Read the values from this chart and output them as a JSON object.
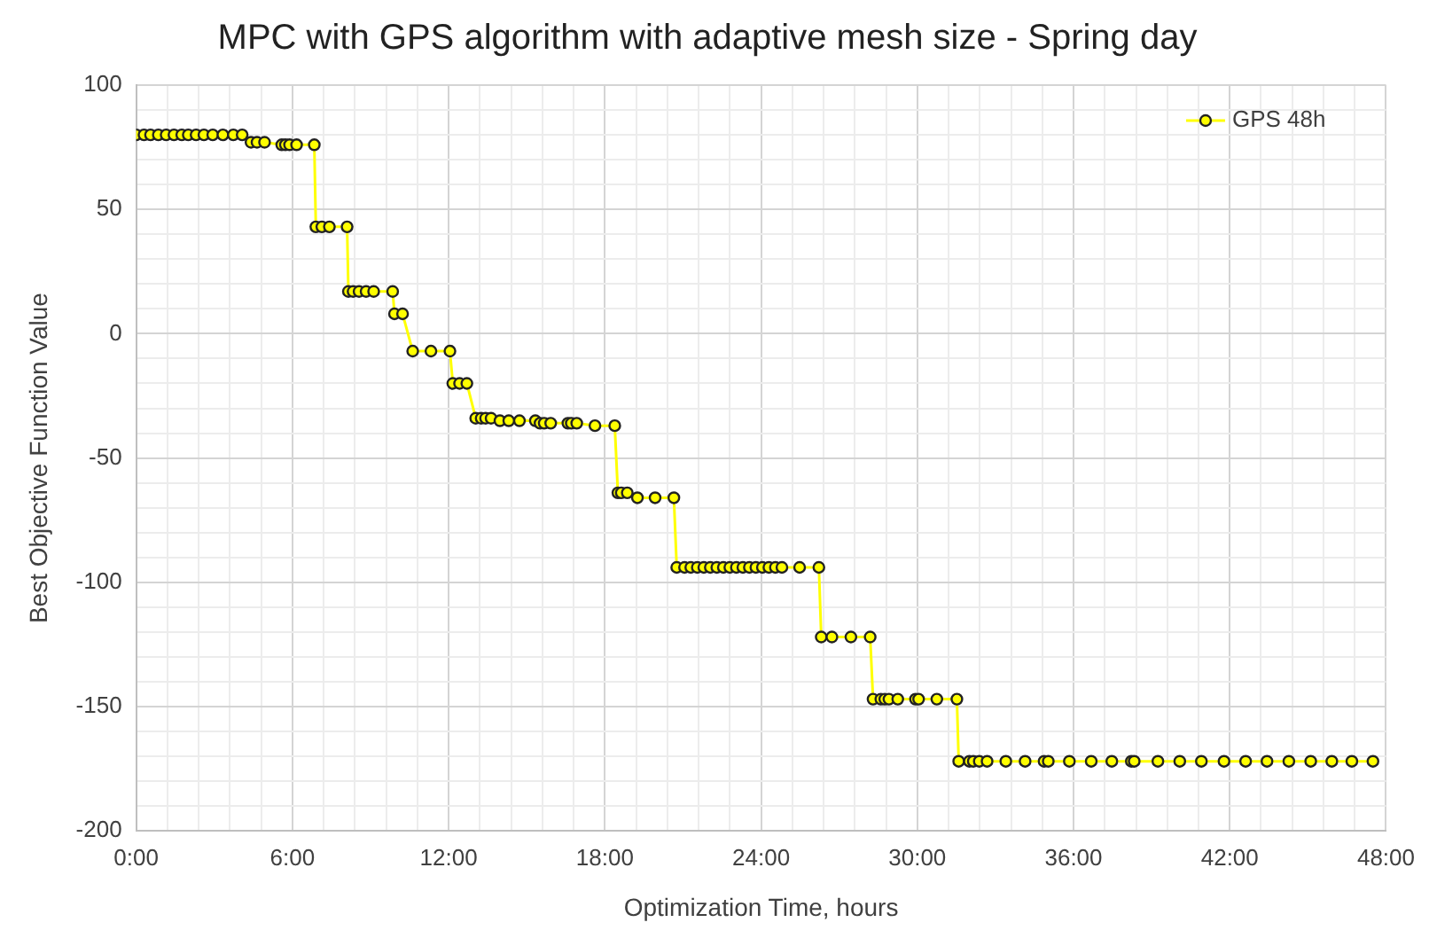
{
  "chart_data": {
    "type": "line",
    "title": "MPC with GPS algorithm with adaptive mesh size - Spring day",
    "xlabel": "Optimization Time, hours",
    "ylabel": "Best Objective Function Value",
    "xlim": [
      0,
      48
    ],
    "ylim": [
      -200,
      100
    ],
    "xticks": [
      {
        "value": 0,
        "label": "0:00"
      },
      {
        "value": 1.2,
        "label": null
      },
      {
        "value": 2.4,
        "label": null
      },
      {
        "value": 3.6,
        "label": null
      },
      {
        "value": 4.8,
        "label": null
      },
      {
        "value": 6,
        "label": "6:00"
      },
      {
        "value": 7.2,
        "label": null
      },
      {
        "value": 8.4,
        "label": null
      },
      {
        "value": 9.6,
        "label": null
      },
      {
        "value": 10.8,
        "label": null
      },
      {
        "value": 12,
        "label": "12:00"
      },
      {
        "value": 13.2,
        "label": null
      },
      {
        "value": 14.4,
        "label": null
      },
      {
        "value": 15.6,
        "label": null
      },
      {
        "value": 16.8,
        "label": null
      },
      {
        "value": 18,
        "label": "18:00"
      },
      {
        "value": 19.2,
        "label": null
      },
      {
        "value": 20.4,
        "label": null
      },
      {
        "value": 21.6,
        "label": null
      },
      {
        "value": 22.8,
        "label": null
      },
      {
        "value": 24,
        "label": "24:00"
      },
      {
        "value": 25.2,
        "label": null
      },
      {
        "value": 26.4,
        "label": null
      },
      {
        "value": 27.6,
        "label": null
      },
      {
        "value": 28.8,
        "label": null
      },
      {
        "value": 30,
        "label": "30:00"
      },
      {
        "value": 31.2,
        "label": null
      },
      {
        "value": 32.4,
        "label": null
      },
      {
        "value": 33.6,
        "label": null
      },
      {
        "value": 34.8,
        "label": null
      },
      {
        "value": 36,
        "label": "36:00"
      },
      {
        "value": 37.2,
        "label": null
      },
      {
        "value": 38.4,
        "label": null
      },
      {
        "value": 39.6,
        "label": null
      },
      {
        "value": 40.8,
        "label": null
      },
      {
        "value": 42,
        "label": "42:00"
      },
      {
        "value": 43.2,
        "label": null
      },
      {
        "value": 44.4,
        "label": null
      },
      {
        "value": 45.6,
        "label": null
      },
      {
        "value": 46.8,
        "label": null
      },
      {
        "value": 48,
        "label": "48:00"
      }
    ],
    "yticks": [
      -200,
      {
        "value": -190,
        "label": null
      },
      {
        "value": -180,
        "label": null
      },
      {
        "value": -170,
        "label": null
      },
      {
        "value": -160,
        "label": null
      },
      -150,
      {
        "value": -140,
        "label": null
      },
      {
        "value": -130,
        "label": null
      },
      {
        "value": -120,
        "label": null
      },
      {
        "value": -110,
        "label": null
      },
      -100,
      {
        "value": -90,
        "label": null
      },
      {
        "value": -80,
        "label": null
      },
      {
        "value": -70,
        "label": null
      },
      {
        "value": -60,
        "label": null
      },
      -50,
      {
        "value": -40,
        "label": null
      },
      {
        "value": -30,
        "label": null
      },
      {
        "value": -20,
        "label": null
      },
      {
        "value": -10,
        "label": null
      },
      0,
      {
        "value": 10,
        "label": null
      },
      {
        "value": 20,
        "label": null
      },
      {
        "value": 30,
        "label": null
      },
      {
        "value": 40,
        "label": null
      },
      50,
      {
        "value": 60,
        "label": null
      },
      {
        "value": 70,
        "label": null
      },
      {
        "value": 80,
        "label": null
      },
      {
        "value": 90,
        "label": null
      },
      100
    ],
    "grid": true,
    "legend": "top right",
    "marker": "circle",
    "line_style": "solid",
    "series": [
      {
        "name": "GPS 48h",
        "color": "#ffff00",
        "x": [
          0,
          0.3,
          0.55,
          0.85,
          1.15,
          1.45,
          1.75,
          2.0,
          2.3,
          2.6,
          2.94,
          3.33,
          3.73,
          4.07,
          4.41,
          4.64,
          4.93,
          5.59,
          5.73,
          5.89,
          6.16,
          6.84,
          6.9,
          7.13,
          7.42,
          8.1,
          8.15,
          8.33,
          8.56,
          8.83,
          9.12,
          9.85,
          9.92,
          10.23,
          10.62,
          11.32,
          12.05,
          12.16,
          12.42,
          12.7,
          13.04,
          13.25,
          13.42,
          13.63,
          13.97,
          14.31,
          14.72,
          15.33,
          15.51,
          15.67,
          15.92,
          16.58,
          16.71,
          16.92,
          17.62,
          18.38,
          18.5,
          18.63,
          18.86,
          19.25,
          19.93,
          20.65,
          20.76,
          21.06,
          21.3,
          21.55,
          21.8,
          22.05,
          22.3,
          22.55,
          22.8,
          23.05,
          23.3,
          23.55,
          23.8,
          24.05,
          24.3,
          24.55,
          24.8,
          25.48,
          26.22,
          26.31,
          26.72,
          27.45,
          28.19,
          28.3,
          28.6,
          28.75,
          28.91,
          29.25,
          29.93,
          30.05,
          30.75,
          31.52,
          31.59,
          32.0,
          32.15,
          32.38,
          32.68,
          33.4,
          34.14,
          34.87,
          35.03,
          35.84,
          36.68,
          37.47,
          38.22,
          38.33,
          39.24,
          40.08,
          40.91,
          41.78,
          42.61,
          43.43,
          44.27,
          45.11,
          45.92,
          46.69,
          47.5
        ],
        "values": [
          80,
          80,
          80,
          80,
          80,
          80,
          80,
          80,
          80,
          80,
          80,
          80,
          80,
          80,
          77,
          77,
          77,
          76,
          76,
          76,
          76,
          76,
          43,
          43,
          43,
          43,
          17,
          17,
          17,
          17,
          17,
          17,
          8,
          8,
          -7,
          -7,
          -7,
          -20,
          -20,
          -20,
          -34,
          -34,
          -34,
          -34,
          -35,
          -35,
          -35,
          -35,
          -36,
          -36,
          -36,
          -36,
          -36,
          -36,
          -37,
          -37,
          -64,
          -64,
          -64,
          -66,
          -66,
          -66,
          -94,
          -94,
          -94,
          -94,
          -94,
          -94,
          -94,
          -94,
          -94,
          -94,
          -94,
          -94,
          -94,
          -94,
          -94,
          -94,
          -94,
          -94,
          -94,
          -122,
          -122,
          -122,
          -122,
          -147,
          -147,
          -147,
          -147,
          -147,
          -147,
          -147,
          -147,
          -147,
          -172,
          -172,
          -172,
          -172,
          -172,
          -172,
          -172,
          -172,
          -172,
          -172,
          -172,
          -172,
          -172,
          -172,
          -172,
          -172,
          -172,
          -172,
          -172,
          -172,
          -172,
          -172,
          -172,
          -172,
          -172
        ]
      }
    ]
  }
}
